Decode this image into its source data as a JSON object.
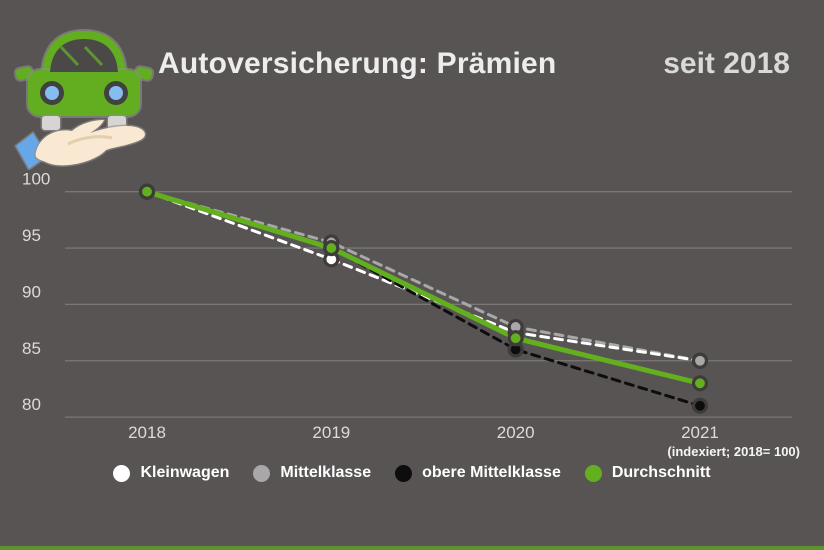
{
  "header": {
    "title": "Autoversicherung: Prämien",
    "subtitle": "seit 2018",
    "icon": "car-over-open-hand-icon"
  },
  "chart_data": {
    "type": "line",
    "title": "Autoversicherung: Prämien seit 2018",
    "categories": [
      "2018",
      "2019",
      "2020",
      "2021"
    ],
    "series": [
      {
        "name": "Kleinwagen",
        "color": "#ffffff",
        "style": "dashed",
        "values": [
          100,
          94,
          87.5,
          85
        ]
      },
      {
        "name": "Mittelklasse",
        "color": "#a8a8a8",
        "style": "dashed",
        "values": [
          100,
          95.5,
          88,
          85
        ]
      },
      {
        "name": "obere Mittelklasse",
        "color": "#0d0d0d",
        "style": "dashed",
        "values": [
          100,
          95,
          86,
          81
        ]
      },
      {
        "name": "Durchschnitt",
        "color": "#63b01f",
        "style": "solid",
        "values": [
          100,
          95,
          87,
          83
        ]
      }
    ],
    "yticks": [
      100,
      95,
      90,
      85,
      80
    ],
    "ylim": [
      78,
      102
    ],
    "grid": "horizontal",
    "legend_position": "bottom",
    "note": "(indexiert; 2018= 100)"
  },
  "colors": {
    "background": "#575453",
    "gridline": "#7a7876",
    "tick_text": "#dcdbda",
    "marker_ring": "#3e3c3b",
    "accent_green": "#63b01f",
    "bottom_bar": "#5e9231",
    "icon_blue": "#85bdf2",
    "icon_hand": "#f9e9d2"
  }
}
